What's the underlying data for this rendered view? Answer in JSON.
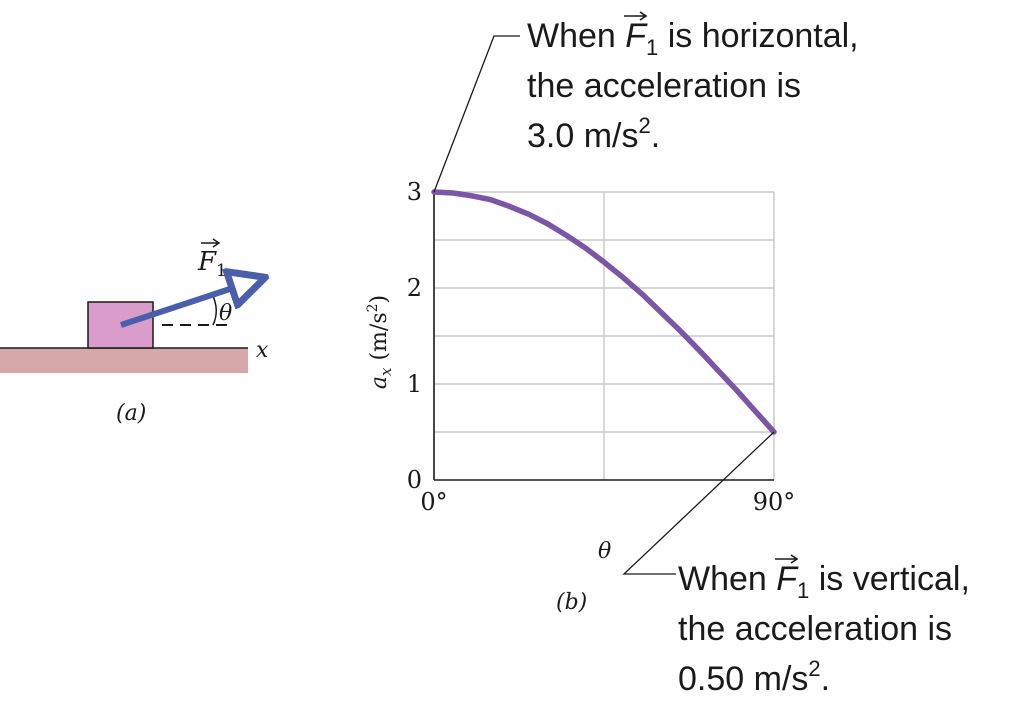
{
  "figure_a": {
    "caption": "(a)",
    "force_label": "F",
    "force_subscript": "1",
    "angle_label": "θ",
    "axis_label": "x",
    "colors": {
      "ground": "#d4a7a8",
      "block": "#d99ccb",
      "arrow": "#4a5faa"
    }
  },
  "figure_b": {
    "caption": "(b)",
    "annotation_top": {
      "line1_pre": "When ",
      "force": "F",
      "subscript": "1",
      "line1_post": " is horizontal,",
      "line2": "the acceleration is",
      "line3_value": "3.0 m/s",
      "line3_exp": "2",
      "line3_end": "."
    },
    "annotation_bottom": {
      "line1_pre": "When ",
      "force": "F",
      "subscript": "1",
      "line1_post": " is vertical,",
      "line2": "the acceleration is",
      "line3_value": "0.50 m/s",
      "line3_exp": "2",
      "line3_end": "."
    }
  },
  "chart_data": {
    "type": "line",
    "xlabel": "θ",
    "ylabel_symbol": "a",
    "ylabel_subscript": "x",
    "ylabel_units_pre": " (m/s",
    "ylabel_units_exp": "2",
    "ylabel_units_post": ")",
    "xlim": [
      0,
      90
    ],
    "ylim": [
      0,
      3
    ],
    "x_tick_labels": [
      "0°",
      "90°"
    ],
    "y_tick_labels": [
      "0",
      "1",
      "2",
      "3"
    ],
    "grid": true,
    "series": [
      {
        "x": [
          0,
          5,
          10,
          15,
          20,
          25,
          30,
          35,
          40,
          45,
          50,
          55,
          60,
          65,
          70,
          75,
          80,
          85,
          90
        ],
        "y": [
          3.0,
          2.99,
          2.96,
          2.92,
          2.85,
          2.77,
          2.67,
          2.55,
          2.42,
          2.27,
          2.11,
          1.94,
          1.75,
          1.56,
          1.36,
          1.15,
          0.94,
          0.72,
          0.5
        ]
      }
    ],
    "colors": {
      "curve": "#7b56a6",
      "grid": "#c8c8c8",
      "axis": "#1a1a1a"
    }
  }
}
